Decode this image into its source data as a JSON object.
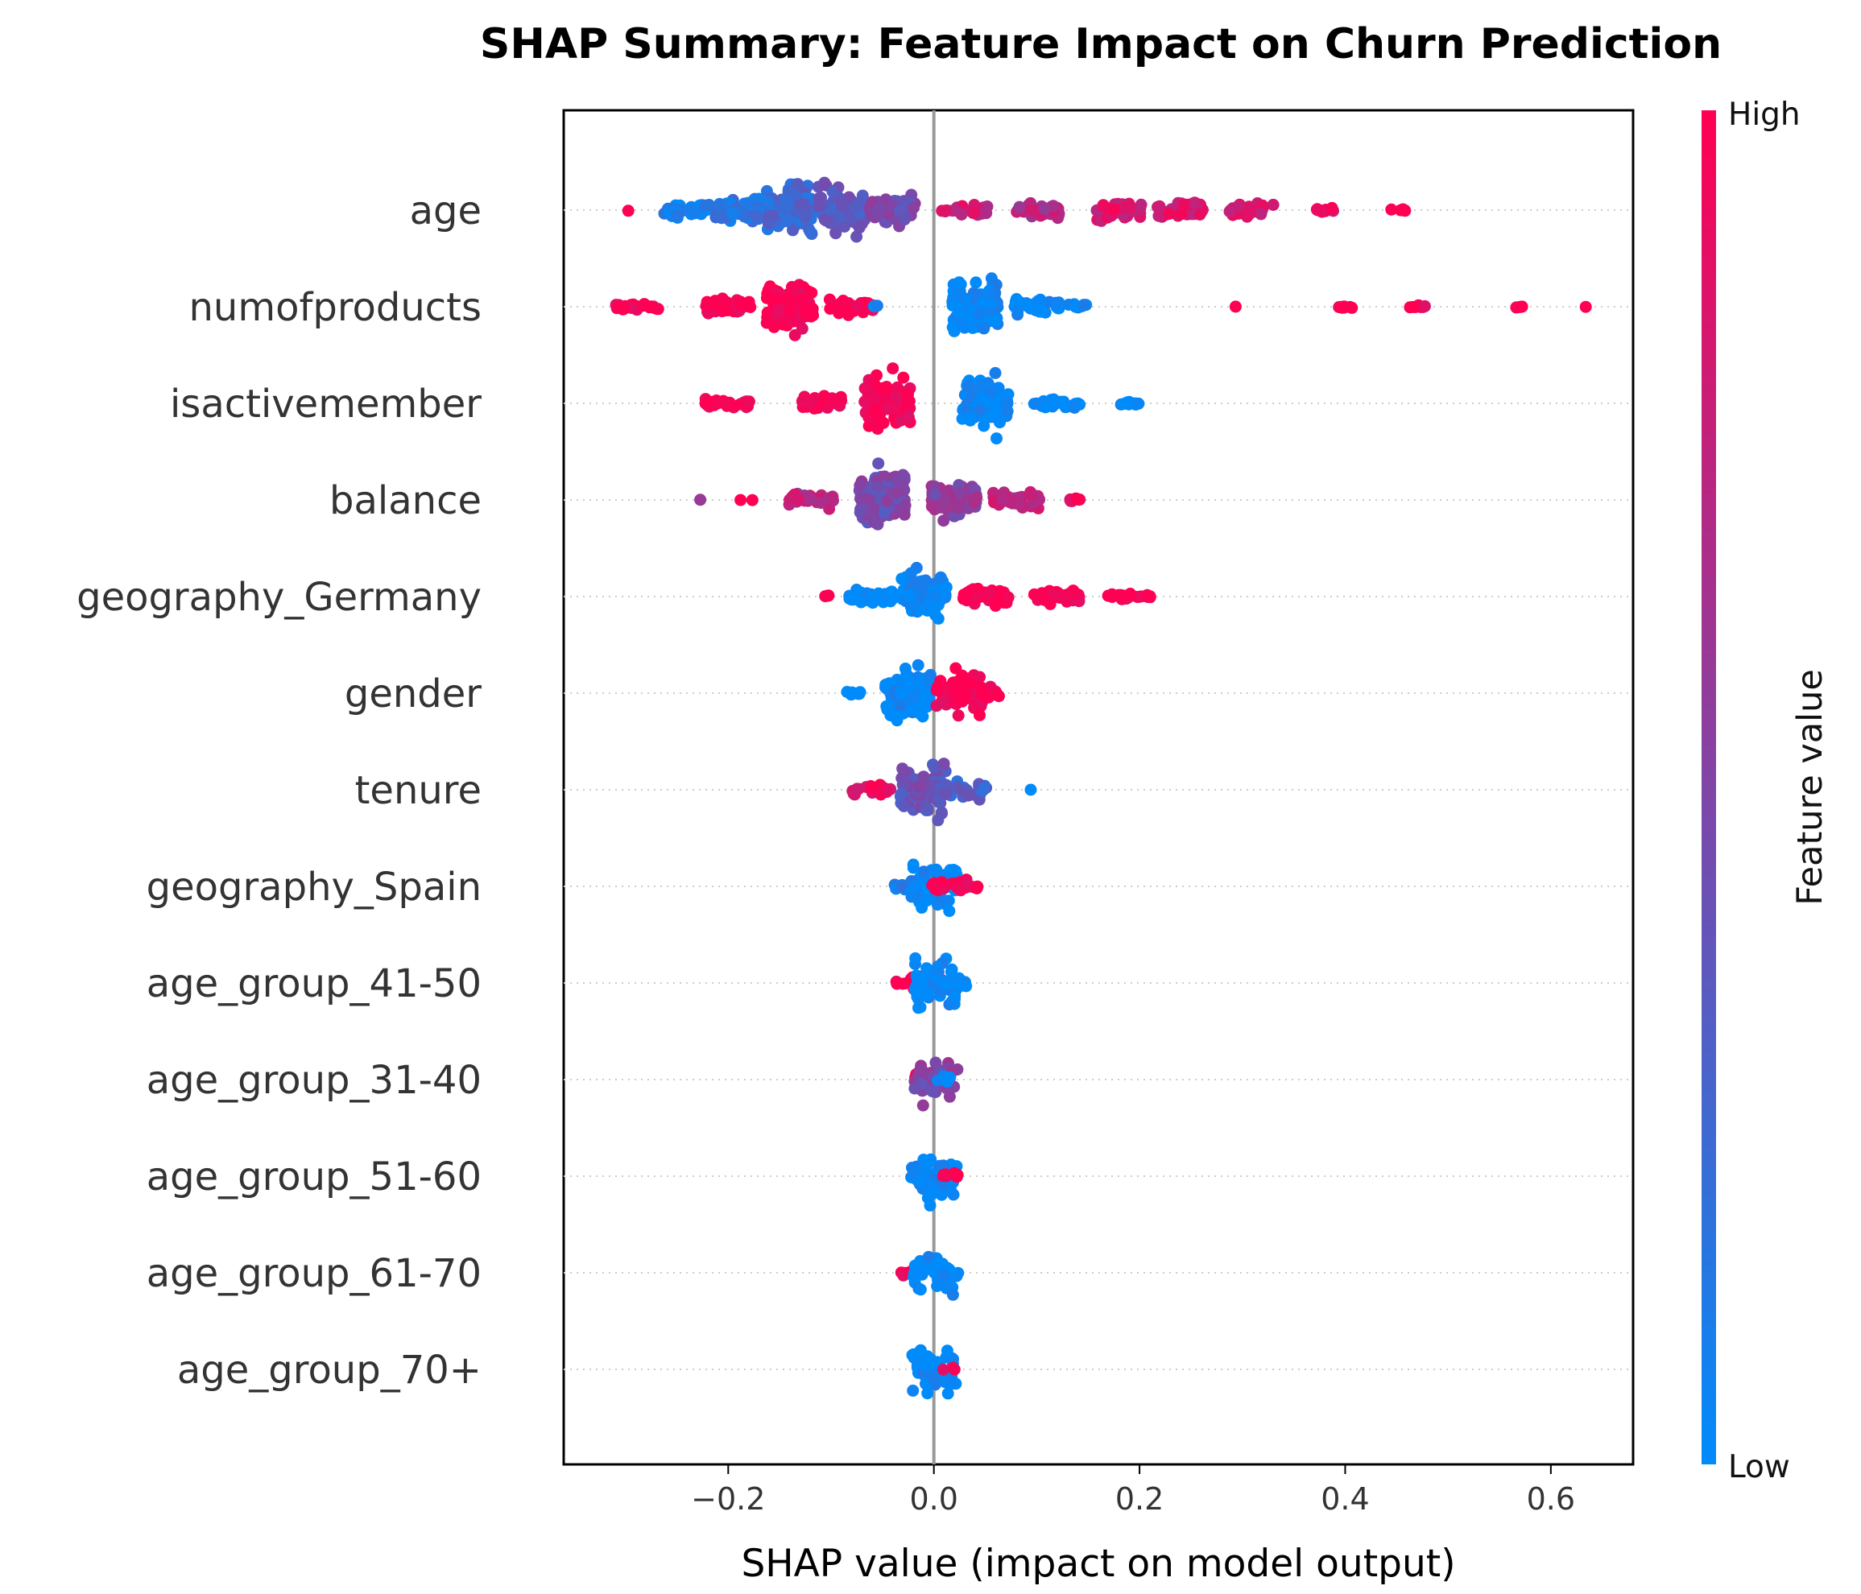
{
  "chart_data": {
    "type": "scatter",
    "subtype": "shap-beeswarm",
    "title": "SHAP Summary: Feature Impact on Churn Prediction",
    "xlabel": "SHAP value (impact on model output)",
    "ylabel": "",
    "xlim": [
      -0.36,
      0.68
    ],
    "xticks": [
      {
        "value": -0.2,
        "label": "−0.2"
      },
      {
        "value": 0.0,
        "label": "0.0"
      },
      {
        "value": 0.2,
        "label": "0.2"
      },
      {
        "value": 0.4,
        "label": "0.4"
      },
      {
        "value": 0.6,
        "label": "0.6"
      }
    ],
    "zero_line": true,
    "row_gridlines": "dotted",
    "colorbar": {
      "title": "Feature value",
      "high_label": "High",
      "low_label": "Low",
      "high_color": "#ff0052",
      "low_color": "#008bfb"
    },
    "features": [
      {
        "name": "age",
        "clusters": [
          {
            "x": -0.3,
            "color": 1.0,
            "n": 1,
            "spread": 0.05
          },
          {
            "x": -0.24,
            "color": 0.05,
            "n": 40,
            "spread": 0.25
          },
          {
            "x": -0.19,
            "color": 0.15,
            "n": 70,
            "spread": 0.5
          },
          {
            "x": -0.14,
            "color": 0.25,
            "n": 110,
            "spread": 0.95
          },
          {
            "x": -0.09,
            "color": 0.35,
            "n": 90,
            "spread": 0.9
          },
          {
            "x": -0.04,
            "color": 0.45,
            "n": 60,
            "spread": 0.55
          },
          {
            "x": 0.03,
            "color": 0.8,
            "n": 25,
            "spread": 0.2
          },
          {
            "x": 0.1,
            "color": 0.7,
            "n": 40,
            "spread": 0.3
          },
          {
            "x": 0.18,
            "color": 0.85,
            "n": 45,
            "spread": 0.4
          },
          {
            "x": 0.24,
            "color": 0.85,
            "n": 40,
            "spread": 0.35
          },
          {
            "x": 0.31,
            "color": 0.8,
            "n": 30,
            "spread": 0.25
          },
          {
            "x": 0.38,
            "color": 0.9,
            "n": 12,
            "spread": 0.1
          },
          {
            "x": 0.45,
            "color": 1.0,
            "n": 6,
            "spread": 0.05
          }
        ]
      },
      {
        "name": "numofproducts",
        "clusters": [
          {
            "x": -0.29,
            "color": 1.0,
            "n": 25,
            "spread": 0.1
          },
          {
            "x": -0.2,
            "color": 1.0,
            "n": 45,
            "spread": 0.3
          },
          {
            "x": -0.14,
            "color": 1.0,
            "n": 100,
            "spread": 0.8
          },
          {
            "x": -0.08,
            "color": 1.0,
            "n": 40,
            "spread": 0.3
          },
          {
            "x": -0.05,
            "color": 0.0,
            "n": 2,
            "spread": 0.05
          },
          {
            "x": 0.04,
            "color": 0.0,
            "n": 120,
            "spread": 0.95
          },
          {
            "x": 0.1,
            "color": 0.0,
            "n": 40,
            "spread": 0.4
          },
          {
            "x": 0.14,
            "color": 0.0,
            "n": 8,
            "spread": 0.1
          },
          {
            "x": 0.29,
            "color": 1.0,
            "n": 1,
            "spread": 0.02
          },
          {
            "x": 0.4,
            "color": 1.0,
            "n": 8,
            "spread": 0.05
          },
          {
            "x": 0.47,
            "color": 1.0,
            "n": 8,
            "spread": 0.05
          },
          {
            "x": 0.57,
            "color": 1.0,
            "n": 4,
            "spread": 0.05
          },
          {
            "x": 0.63,
            "color": 1.0,
            "n": 1,
            "spread": 0.02
          }
        ]
      },
      {
        "name": "isactivemember",
        "clusters": [
          {
            "x": -0.2,
            "color": 1.0,
            "n": 35,
            "spread": 0.15
          },
          {
            "x": -0.11,
            "color": 1.0,
            "n": 45,
            "spread": 0.3
          },
          {
            "x": -0.045,
            "color": 1.0,
            "n": 90,
            "spread": 0.95
          },
          {
            "x": 0.05,
            "color": 0.0,
            "n": 110,
            "spread": 0.95
          },
          {
            "x": 0.12,
            "color": 0.0,
            "n": 35,
            "spread": 0.2
          },
          {
            "x": 0.19,
            "color": 0.0,
            "n": 10,
            "spread": 0.05
          }
        ]
      },
      {
        "name": "balance",
        "clusters": [
          {
            "x": -0.23,
            "color": 0.6,
            "n": 1,
            "spread": 0.02
          },
          {
            "x": -0.18,
            "color": 1.0,
            "n": 2,
            "spread": 0.05
          },
          {
            "x": -0.12,
            "color": 0.75,
            "n": 30,
            "spread": 0.25
          },
          {
            "x": -0.05,
            "color": 0.45,
            "n": 130,
            "spread": 0.95
          },
          {
            "x": 0.02,
            "color": 0.55,
            "n": 90,
            "spread": 0.6
          },
          {
            "x": 0.08,
            "color": 0.75,
            "n": 45,
            "spread": 0.3
          },
          {
            "x": 0.14,
            "color": 0.95,
            "n": 10,
            "spread": 0.08
          }
        ]
      },
      {
        "name": "geography_Germany",
        "clusters": [
          {
            "x": -0.11,
            "color": 1.0,
            "n": 3,
            "spread": 0.05
          },
          {
            "x": -0.06,
            "color": 0.0,
            "n": 60,
            "spread": 0.25
          },
          {
            "x": -0.01,
            "color": 0.0,
            "n": 80,
            "spread": 0.9
          },
          {
            "x": 0.05,
            "color": 1.0,
            "n": 50,
            "spread": 0.3
          },
          {
            "x": 0.12,
            "color": 1.0,
            "n": 50,
            "spread": 0.25
          },
          {
            "x": 0.19,
            "color": 1.0,
            "n": 25,
            "spread": 0.1
          }
        ]
      },
      {
        "name": "gender",
        "clusters": [
          {
            "x": -0.08,
            "color": 0.0,
            "n": 8,
            "spread": 0.1
          },
          {
            "x": -0.025,
            "color": 0.0,
            "n": 90,
            "spread": 0.95
          },
          {
            "x": 0.025,
            "color": 1.0,
            "n": 70,
            "spread": 0.85
          },
          {
            "x": 0.055,
            "color": 1.0,
            "n": 15,
            "spread": 0.2
          }
        ]
      },
      {
        "name": "tenure",
        "clusters": [
          {
            "x": -0.06,
            "color": 0.9,
            "n": 25,
            "spread": 0.2
          },
          {
            "x": -0.01,
            "color": 0.4,
            "n": 80,
            "spread": 0.95
          },
          {
            "x": 0.03,
            "color": 0.3,
            "n": 30,
            "spread": 0.3
          },
          {
            "x": 0.1,
            "color": 0.0,
            "n": 1,
            "spread": 0.02
          }
        ]
      },
      {
        "name": "geography_Spain",
        "clusters": [
          {
            "x": -0.03,
            "color": 0.1,
            "n": 12,
            "spread": 0.15
          },
          {
            "x": 0.0,
            "color": 0.0,
            "n": 60,
            "spread": 0.95
          },
          {
            "x": 0.02,
            "color": 1.0,
            "n": 30,
            "spread": 0.3
          }
        ]
      },
      {
        "name": "age_group_41-50",
        "clusters": [
          {
            "x": -0.015,
            "color": 1.0,
            "n": 25,
            "spread": 0.3
          },
          {
            "x": 0.004,
            "color": 0.0,
            "n": 50,
            "spread": 0.95
          },
          {
            "x": 0.025,
            "color": 0.0,
            "n": 15,
            "spread": 0.2
          }
        ]
      },
      {
        "name": "age_group_31-40",
        "clusters": [
          {
            "x": -0.01,
            "color": 1.0,
            "n": 12,
            "spread": 0.25
          },
          {
            "x": 0.001,
            "color": 0.5,
            "n": 40,
            "spread": 0.8
          },
          {
            "x": 0.01,
            "color": 0.0,
            "n": 8,
            "spread": 0.2
          }
        ]
      },
      {
        "name": "age_group_51-60",
        "clusters": [
          {
            "x": -0.008,
            "color": 1.0,
            "n": 4,
            "spread": 0.1
          },
          {
            "x": 0.0,
            "color": 0.0,
            "n": 50,
            "spread": 0.9
          },
          {
            "x": 0.015,
            "color": 1.0,
            "n": 8,
            "spread": 0.15
          }
        ]
      },
      {
        "name": "age_group_61-70",
        "clusters": [
          {
            "x": -0.025,
            "color": 1.0,
            "n": 8,
            "spread": 0.15
          },
          {
            "x": 0.002,
            "color": 0.0,
            "n": 45,
            "spread": 0.85
          }
        ]
      },
      {
        "name": "age_group_70+",
        "clusters": [
          {
            "x": -0.008,
            "color": 1.0,
            "n": 3,
            "spread": 0.08
          },
          {
            "x": 0.001,
            "color": 0.0,
            "n": 45,
            "spread": 0.95
          },
          {
            "x": 0.012,
            "color": 1.0,
            "n": 3,
            "spread": 0.08
          }
        ]
      }
    ]
  }
}
